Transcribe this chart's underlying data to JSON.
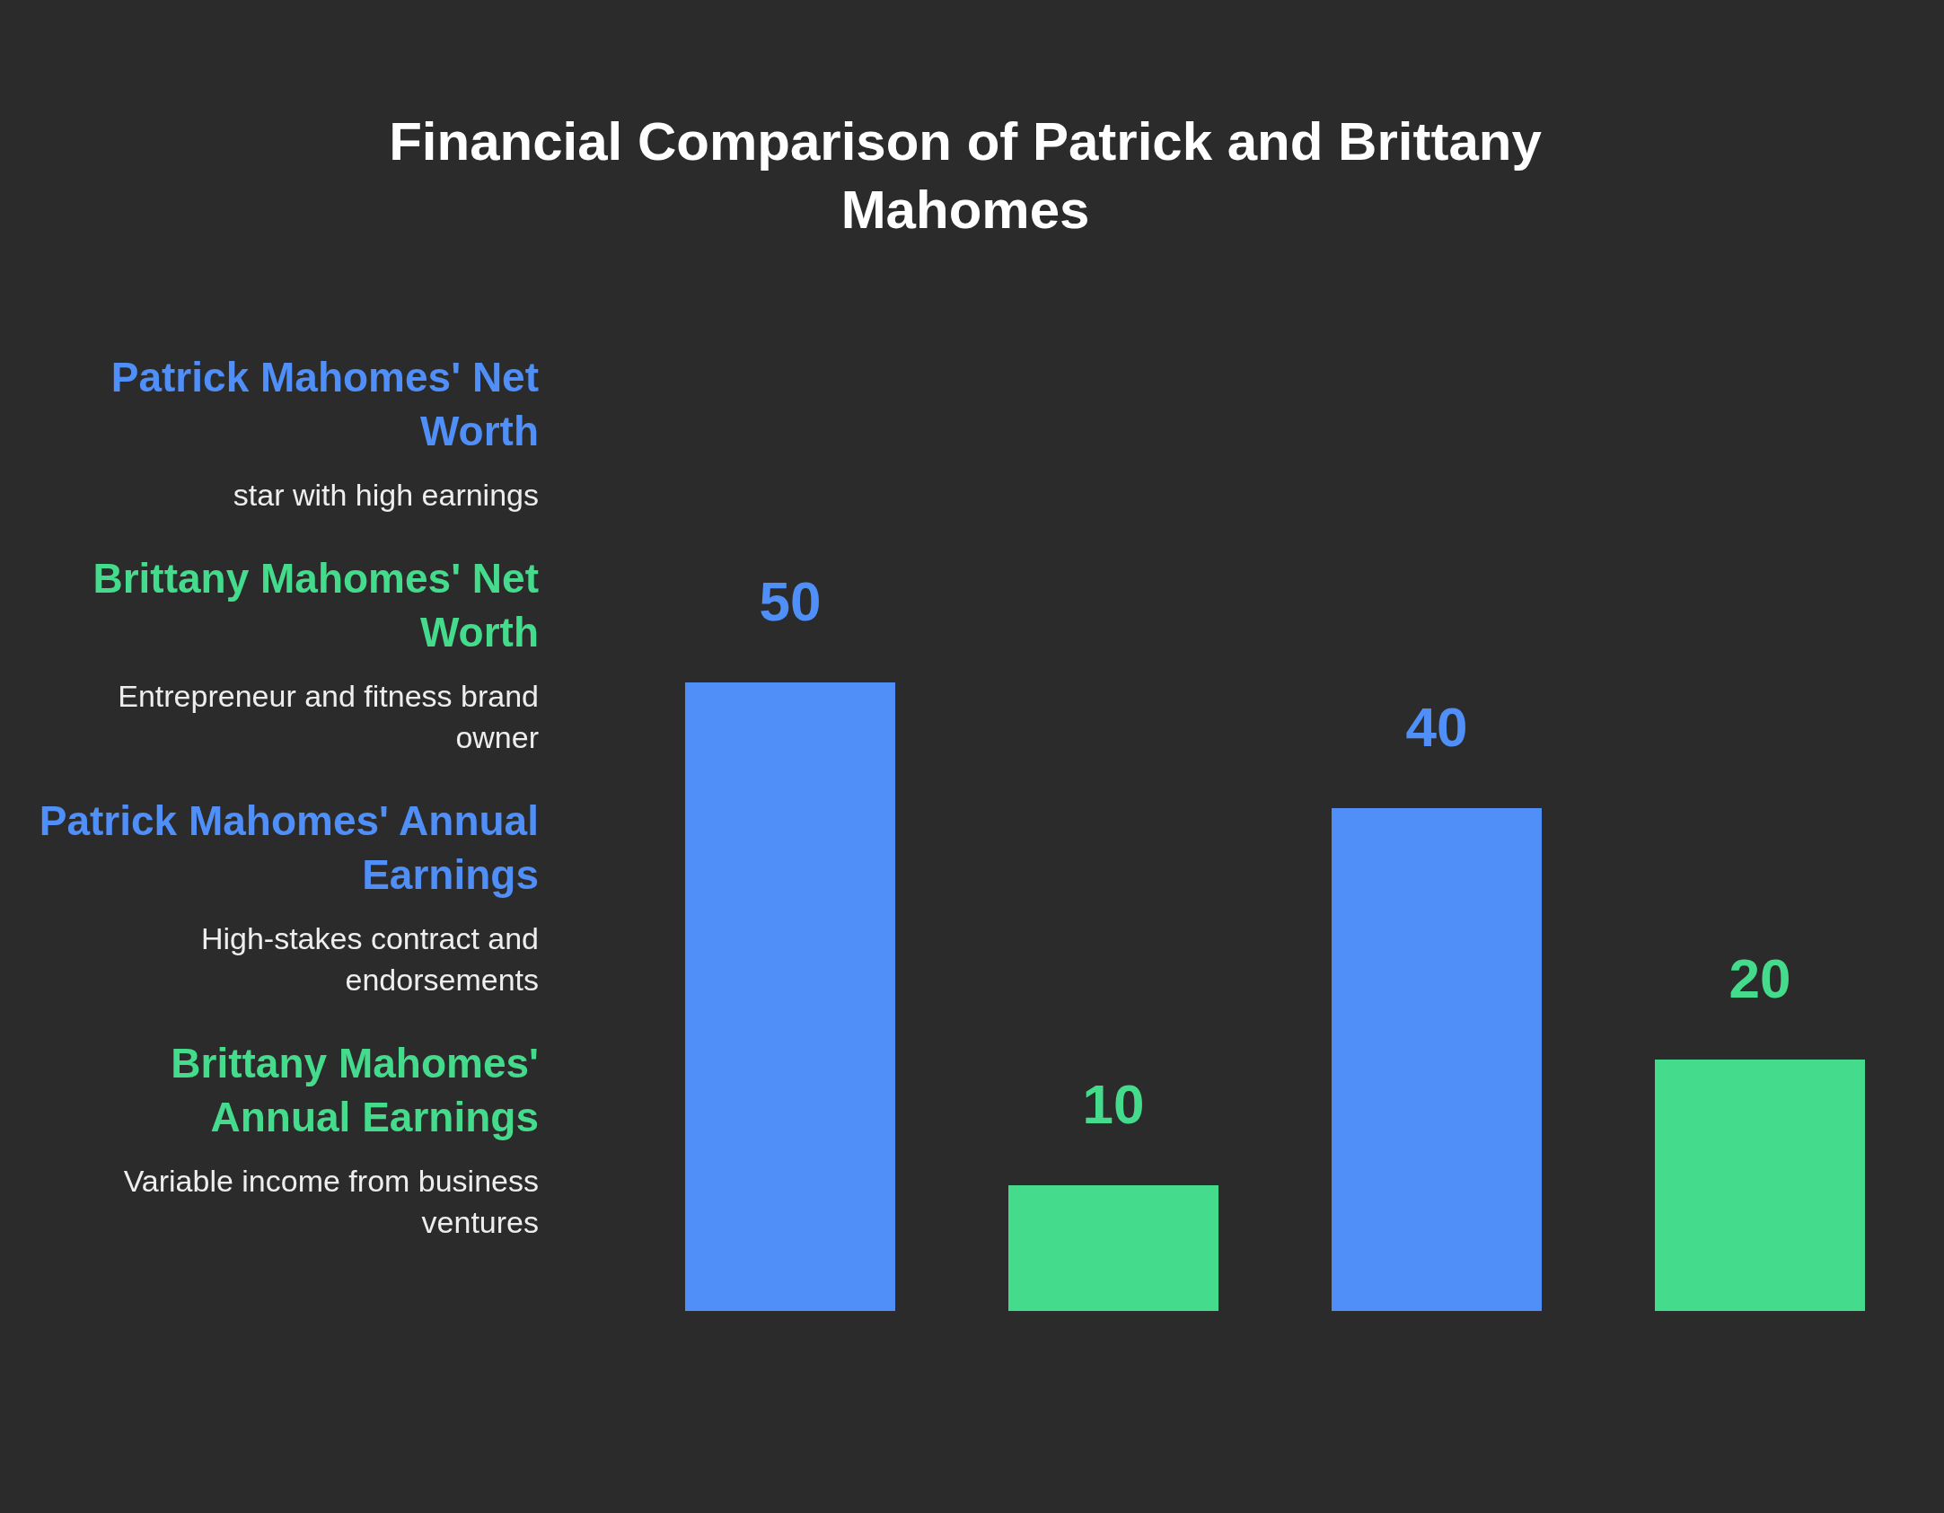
{
  "chart_data": {
    "type": "bar",
    "title": "Financial Comparison of Patrick and Brittany Mahomes",
    "categories": [
      null,
      null,
      null,
      null
    ],
    "values": [
      50,
      10,
      40,
      20
    ],
    "colors": [
      "#4f8ff7",
      "#45db8c",
      "#4f8ff7",
      "#45db8c"
    ],
    "annotations": [
      "Patrick Mahomes' Net Worth",
      "star with high earnings",
      "Brittany Mahomes' Net Worth",
      "Entrepreneur and fitness brand owner",
      "Patrick Mahomes' Annual Earnings",
      "High-stakes contract and endorsements",
      "Brittany Mahomes' Annual Earnings",
      "Variable income from business ventures"
    ],
    "data_labels": true
  }
}
